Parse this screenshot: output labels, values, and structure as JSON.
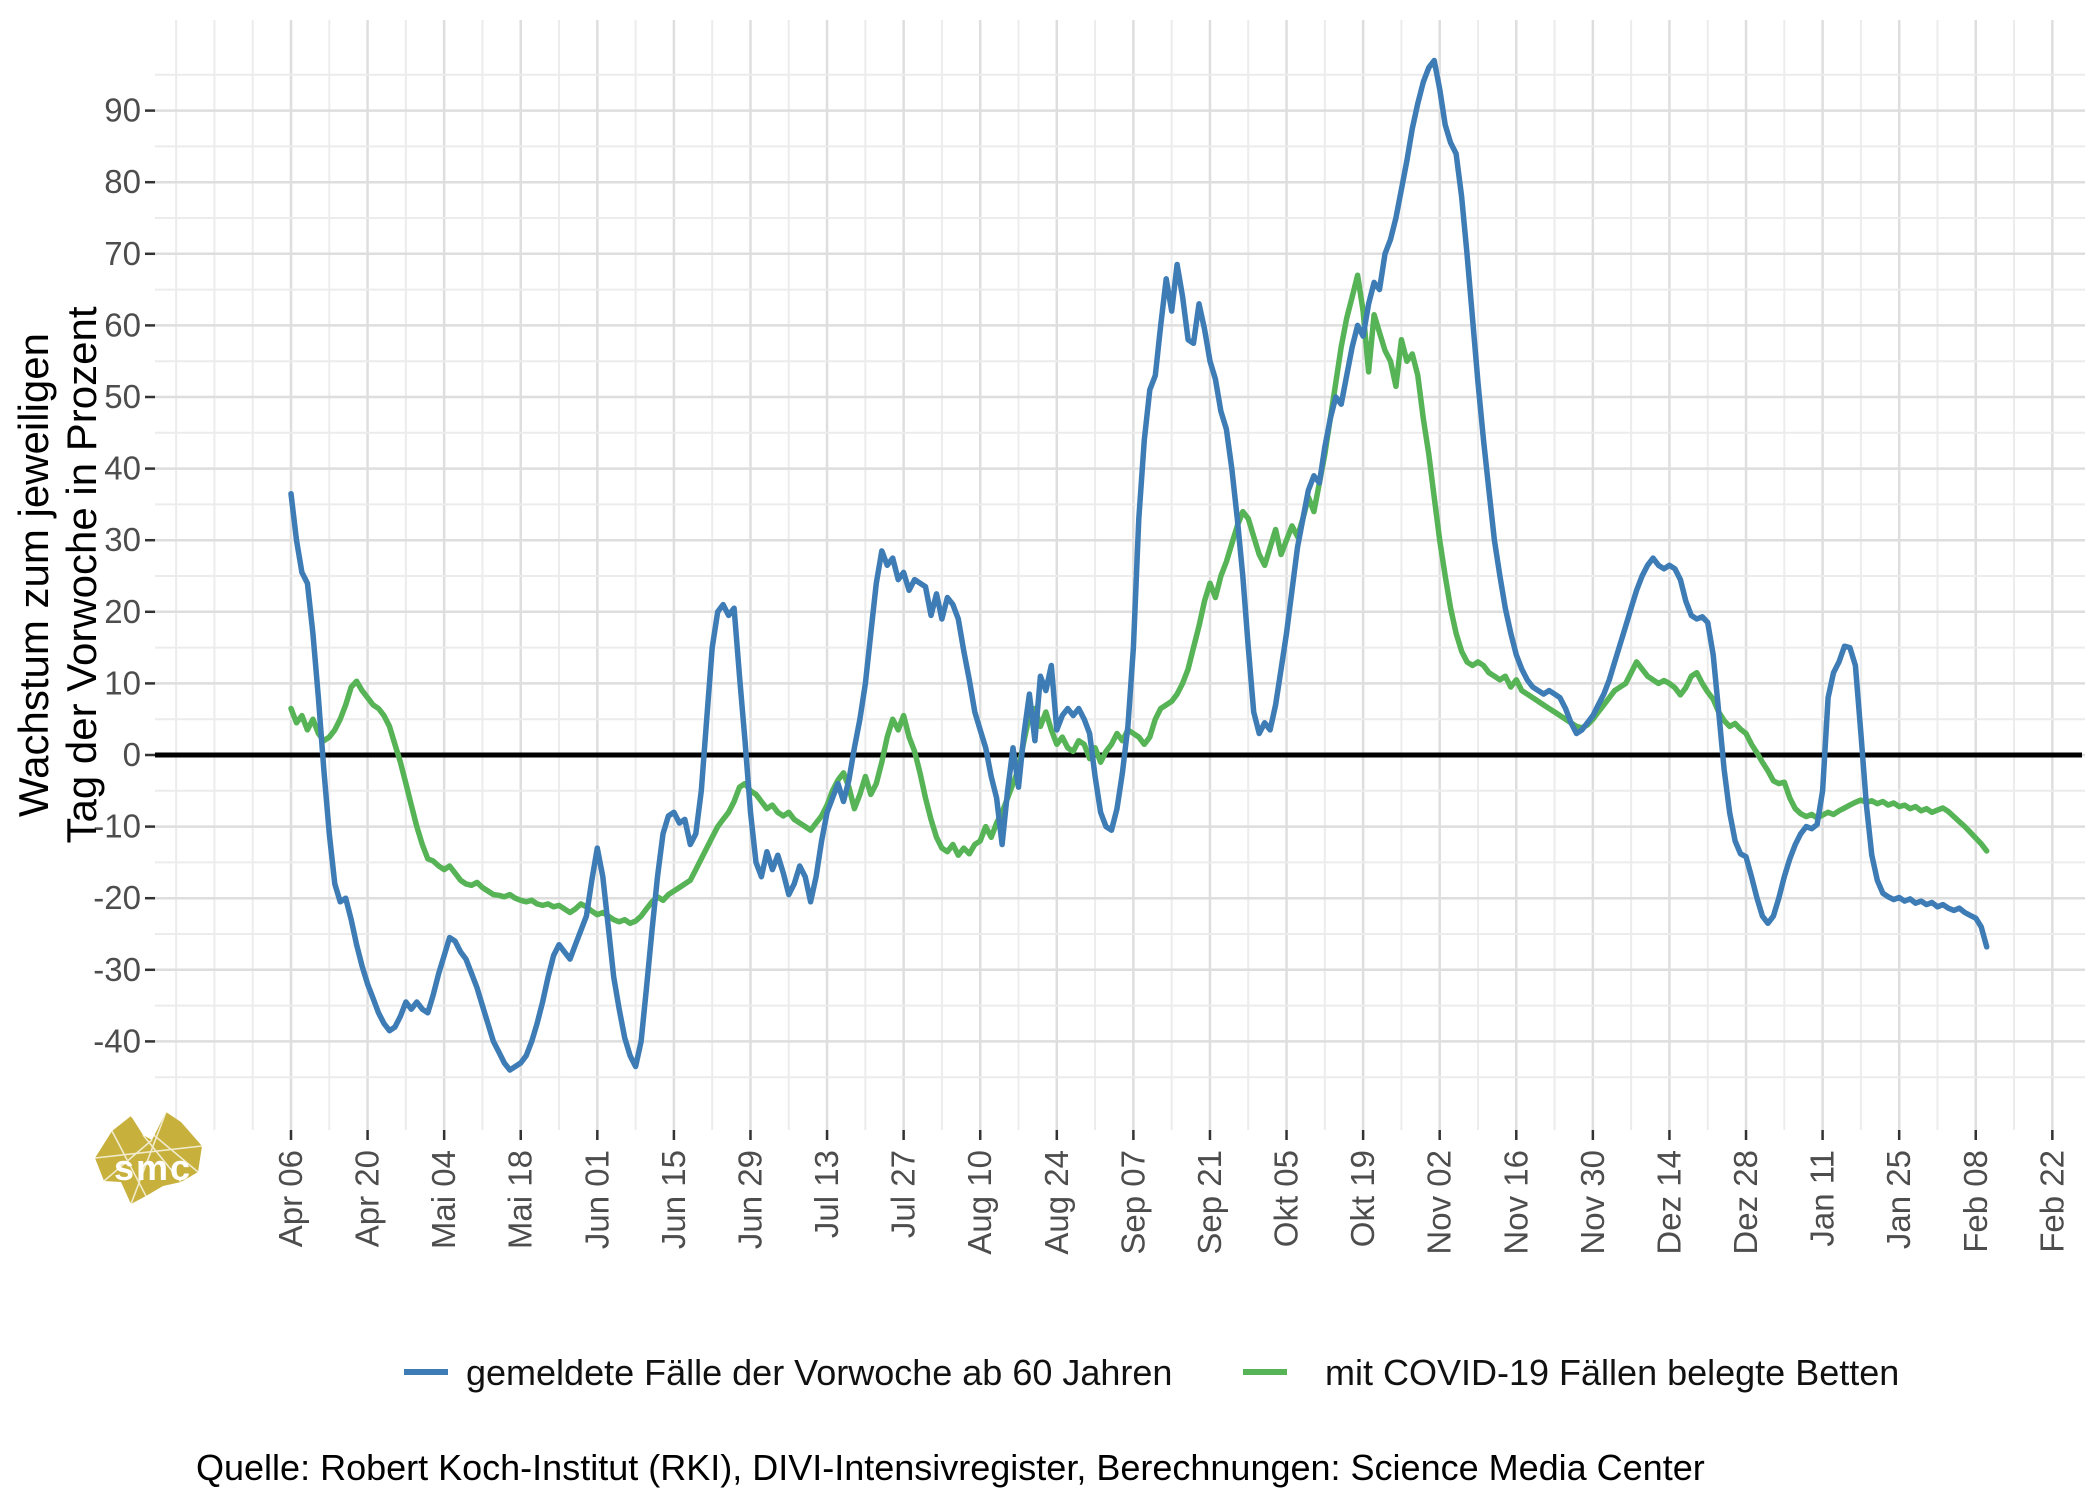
{
  "y_axis": {
    "title_line1": "Wachstum zum jeweiligen",
    "title_line2": "Tag der Vorwoche in Prozent",
    "tick_values": [
      90,
      80,
      70,
      60,
      50,
      40,
      30,
      20,
      10,
      0,
      -10,
      -20,
      -30,
      -40
    ]
  },
  "x_axis": {
    "tick_labels": [
      "Apr 06",
      "Apr 20",
      "Mai 04",
      "Mai 18",
      "Jun 01",
      "Jun 15",
      "Jun 29",
      "Jul 13",
      "Jul 27",
      "Aug 10",
      "Aug 24",
      "Sep 07",
      "Sep 21",
      "Okt 05",
      "Okt 19",
      "Nov 02",
      "Nov 16",
      "Nov 30",
      "Dez 14",
      "Dez 28",
      "Jan 11",
      "Jan 25",
      "Feb 08",
      "Feb 22"
    ],
    "tick_interval_days": 14
  },
  "legend": {
    "items": [
      {
        "label": "gemeldete Fälle der Vorwoche ab 60 Jahren",
        "color": "#3E7CB6"
      },
      {
        "label": "mit COVID-19 Fällen belegte Betten",
        "color": "#56B356"
      }
    ]
  },
  "source": "Quelle: Robert Koch-Institut (RKI), DIVI-Intensivregister, Berechnungen: Science Media Center",
  "logo": {
    "text": "smc",
    "color": "#C7B03C"
  },
  "colors": {
    "zero_line": "#000000",
    "grid_major": "#dedede",
    "grid_minor": "#ececec",
    "tick": "#333333"
  },
  "chart_data": {
    "type": "line",
    "x_start_label": "Apr 06",
    "x_step": "1 day",
    "x_tick_labels": [
      "Apr 06",
      "Apr 20",
      "Mai 04",
      "Mai 18",
      "Jun 01",
      "Jun 15",
      "Jun 29",
      "Jul 13",
      "Jul 27",
      "Aug 10",
      "Aug 24",
      "Sep 07",
      "Sep 21",
      "Okt 05",
      "Okt 19",
      "Nov 02",
      "Nov 16",
      "Nov 30",
      "Dez 14",
      "Dez 28",
      "Jan 11",
      "Jan 25",
      "Feb 08",
      "Feb 22"
    ],
    "ylabel": "Wachstum zum jeweiligen Tag der Vorwoche in Prozent",
    "ylim": [
      -53,
      103
    ],
    "y_ticks": [
      90,
      80,
      70,
      60,
      50,
      40,
      30,
      20,
      10,
      0,
      -10,
      -20,
      -30,
      -40
    ],
    "grid": true,
    "zero_line": true,
    "legend_position": "bottom",
    "series": [
      {
        "name": "gemeldete Fälle der Vorwoche ab 60 Jahren",
        "color": "#3E7CB6",
        "values": [
          36.5,
          30,
          25.5,
          24,
          17,
          8,
          -2,
          -11,
          -18,
          -20.5,
          -20,
          -23,
          -26.5,
          -29.5,
          -32,
          -34,
          -36,
          -37.5,
          -38.5,
          -38,
          -36.5,
          -34.5,
          -35.5,
          -34.5,
          -35.5,
          -36,
          -33.5,
          -30.5,
          -28,
          -25.5,
          -26,
          -27.5,
          -28.5,
          -30.5,
          -32.5,
          -35,
          -37.5,
          -40,
          -41.5,
          -43,
          -44,
          -43.5,
          -43,
          -42,
          -40,
          -37.5,
          -34.5,
          -31,
          -28,
          -26.5,
          -27.5,
          -28.5,
          -26.5,
          -24.5,
          -22.5,
          -17.5,
          -13,
          -17,
          -24,
          -31,
          -35.5,
          -39.5,
          -42,
          -43.5,
          -40,
          -32.5,
          -24.5,
          -17,
          -11,
          -8.5,
          -8,
          -9.5,
          -9,
          -12.5,
          -11,
          -5,
          5,
          15,
          20,
          21,
          19.5,
          20.5,
          11,
          2,
          -8,
          -15,
          -17,
          -13.5,
          -16,
          -14,
          -16.5,
          -19.5,
          -18,
          -15.5,
          -17,
          -20.5,
          -17,
          -12,
          -8,
          -6,
          -4,
          -6.5,
          -3.5,
          1,
          5,
          10,
          17,
          24,
          28.5,
          26.5,
          27.5,
          24.5,
          25.5,
          23,
          24.5,
          24,
          23.5,
          19.5,
          22.5,
          19,
          22,
          21,
          19,
          14.5,
          10.5,
          6,
          3.5,
          1,
          -3,
          -6,
          -12.5,
          -5,
          1,
          -4.5,
          3,
          8.5,
          2,
          11,
          9,
          12.5,
          3.5,
          5.5,
          6.5,
          5.5,
          6.5,
          5,
          3,
          -3,
          -8,
          -10,
          -10.5,
          -7.5,
          -2.5,
          4,
          15,
          33,
          44,
          51,
          53,
          60,
          66.5,
          62,
          68.5,
          64,
          58,
          57.5,
          63,
          59.5,
          55,
          52.5,
          48,
          45.5,
          40,
          33,
          25,
          15,
          6,
          3,
          4.5,
          3.5,
          7,
          12,
          17,
          23,
          29,
          33,
          37,
          39,
          38,
          43,
          47,
          50,
          49,
          53,
          57,
          60,
          58.5,
          63,
          66,
          65,
          70,
          72,
          75,
          79,
          83,
          87.5,
          91,
          94,
          96,
          97,
          93,
          88,
          85.5,
          84,
          78,
          70,
          61,
          52,
          44,
          37,
          30,
          25,
          20.5,
          17,
          14,
          12,
          10.5,
          9.5,
          9,
          8.5,
          9,
          8.5,
          8,
          6.5,
          4.5,
          3,
          3.5,
          4.5,
          5.5,
          7,
          8.5,
          10.5,
          13,
          15.5,
          18,
          20.5,
          23,
          25,
          26.5,
          27.5,
          26.5,
          26,
          26.5,
          26,
          24.5,
          21.5,
          19.5,
          19,
          19.3,
          18.5,
          14,
          6,
          -2,
          -8,
          -12,
          -13.8,
          -14.2,
          -17,
          -20,
          -22.5,
          -23.5,
          -22.5,
          -20,
          -17,
          -14.5,
          -12.5,
          -11,
          -10,
          -10.3,
          -9.7,
          -5,
          8,
          11.5,
          13,
          15.2,
          15,
          12.5,
          3,
          -7,
          -14,
          -17.5,
          -19.3,
          -19.8,
          -20.2,
          -19.9,
          -20.4,
          -20.1,
          -20.7,
          -20.4,
          -20.9,
          -20.6,
          -21.2,
          -20.9,
          -21.4,
          -21.7,
          -21.4,
          -22,
          -22.4,
          -22.8,
          -24,
          -26.8
        ]
      },
      {
        "name": "mit COVID-19 Fällen belegte Betten",
        "color": "#56B356",
        "values": [
          6.5,
          4.5,
          5.5,
          3.5,
          5,
          3,
          2,
          2.5,
          3.5,
          5,
          7,
          9.5,
          10.3,
          9,
          8,
          7,
          6.5,
          5.5,
          4,
          1.5,
          -1,
          -4,
          -7,
          -10,
          -12.5,
          -14.5,
          -14.8,
          -15.5,
          -16,
          -15.5,
          -16.5,
          -17.5,
          -18,
          -18.2,
          -17.8,
          -18.5,
          -19,
          -19.5,
          -19.6,
          -19.8,
          -19.5,
          -20,
          -20.3,
          -20.5,
          -20.3,
          -20.8,
          -21,
          -20.8,
          -21.2,
          -21,
          -21.5,
          -22,
          -21.5,
          -20.8,
          -21.2,
          -21.8,
          -22.3,
          -22,
          -22.5,
          -23,
          -23.3,
          -23,
          -23.5,
          -23.2,
          -22.5,
          -21.5,
          -20.5,
          -19.8,
          -20.3,
          -19.5,
          -19,
          -18.5,
          -18,
          -17.5,
          -16,
          -14.5,
          -13,
          -11.5,
          -10,
          -9,
          -8,
          -6.5,
          -4.5,
          -4,
          -5,
          -5.5,
          -6.5,
          -7.5,
          -7,
          -8,
          -8.5,
          -8,
          -9,
          -9.5,
          -10,
          -10.5,
          -9.5,
          -8.5,
          -7,
          -5,
          -3.5,
          -2.5,
          -4.5,
          -7.5,
          -5.5,
          -3,
          -5.5,
          -4,
          -1,
          2.5,
          5,
          3.5,
          5.5,
          2.5,
          0.5,
          -2.5,
          -6,
          -9,
          -11.5,
          -13,
          -13.5,
          -12.5,
          -14,
          -13,
          -13.8,
          -12.5,
          -12,
          -10,
          -11.5,
          -9.5,
          -8,
          -6,
          -4,
          -2,
          2,
          5.5,
          6.5,
          4,
          6,
          3.5,
          1.5,
          2.5,
          1,
          0.5,
          2,
          1.5,
          -0.5,
          1,
          -1,
          0.5,
          1.5,
          3,
          2,
          3.5,
          3,
          2.5,
          1.5,
          2.5,
          5,
          6.5,
          7,
          7.5,
          8.5,
          10,
          12,
          15,
          18,
          21.5,
          24,
          22,
          25,
          27,
          29.5,
          32,
          34,
          33,
          30.5,
          28,
          26.5,
          29,
          31.5,
          28,
          30,
          32,
          30.5,
          33,
          36,
          34,
          38,
          42,
          47,
          52,
          57,
          61,
          64,
          67,
          62,
          53.5,
          61.5,
          59,
          56.5,
          55,
          51.5,
          58,
          55,
          56,
          53,
          47,
          42,
          36,
          30,
          25,
          20.5,
          17,
          14.5,
          13,
          12.5,
          13,
          12.5,
          11.5,
          11,
          10.5,
          11,
          9.5,
          10.5,
          9,
          8.5,
          8,
          7.5,
          7,
          6.5,
          6,
          5.5,
          5,
          4.5,
          4,
          3.8,
          4.2,
          5,
          6,
          7,
          8,
          9,
          9.5,
          10,
          11.5,
          13,
          12,
          11,
          10.5,
          10,
          10.4,
          10,
          9.4,
          8.4,
          9.4,
          11,
          11.5,
          10,
          8.8,
          7.8,
          6,
          4.8,
          4,
          4.4,
          3.6,
          3,
          1.5,
          0.3,
          -1,
          -2.2,
          -3.6,
          -4,
          -3.8,
          -6,
          -7.5,
          -8.2,
          -8.6,
          -8.3,
          -8.8,
          -8.4,
          -8,
          -8.3,
          -7.8,
          -7.4,
          -7,
          -6.6,
          -6.3,
          -6.6,
          -6.4,
          -6.8,
          -6.5,
          -7,
          -6.7,
          -7.2,
          -7,
          -7.5,
          -7.2,
          -7.8,
          -7.5,
          -8,
          -7.7,
          -7.4,
          -7.9,
          -8.6,
          -9.3,
          -10,
          -10.8,
          -11.6,
          -12.4,
          -13.4
        ]
      }
    ]
  }
}
